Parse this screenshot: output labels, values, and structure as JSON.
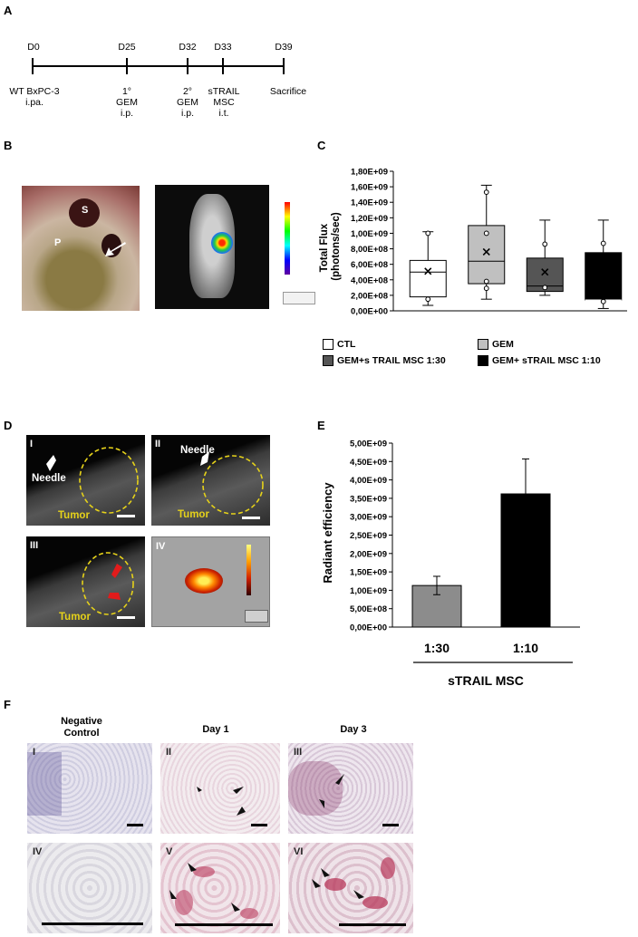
{
  "panels": {
    "A": "A",
    "B": "B",
    "C": "C",
    "D": "D",
    "E": "E",
    "F": "F"
  },
  "timeline": {
    "days": [
      "D0",
      "D25",
      "D32",
      "D33",
      "D39"
    ],
    "labels": [
      "WT BxPC-3\ni.pa.",
      "1°\nGEM\ni.p.",
      "2°\nGEM\ni.p.",
      "sTRAIL\nMSC\ni.t.",
      "Sacrifice"
    ]
  },
  "photoB": {
    "s_label": "S",
    "p_label": "P"
  },
  "ultrasound": {
    "roman": [
      "I",
      "II",
      "III",
      "IV"
    ],
    "needle": "Needle",
    "tumor": "Tumor"
  },
  "histology": {
    "titles": [
      "Negative\nControl",
      "Day 1",
      "Day 3"
    ],
    "roman": [
      "I",
      "II",
      "III",
      "IV",
      "V",
      "VI"
    ]
  },
  "chart_data": [
    {
      "type": "box",
      "ylabel": "Total Flux\n(photons/sec)",
      "ylim": [
        0,
        1800000000
      ],
      "yticks": [
        "0,00E+00",
        "2,00E+08",
        "4,00E+08",
        "6,00E+08",
        "8,00E+08",
        "1,00E+09",
        "1,20E+09",
        "1,40E+09",
        "1,60E+09",
        "1,80E+09"
      ],
      "colors": [
        "#ffffff",
        "#c0c0c0",
        "#555555",
        "#000000"
      ],
      "legend": [
        "CTL",
        "GEM",
        "GEM+s TRAIL MSC 1:30",
        "GEM+ sTRAIL MSC 1:10"
      ],
      "series": [
        {
          "min": 70000000,
          "q1": 180000000,
          "median": 500000000,
          "q3": 650000000,
          "max": 1020000000,
          "mean": 510000000,
          "points": [
            1000000000,
            150000000
          ]
        },
        {
          "min": 150000000,
          "q1": 350000000,
          "median": 640000000,
          "q3": 1100000000,
          "max": 1620000000,
          "mean": 760000000,
          "points": [
            1530000000,
            1000000000,
            380000000,
            290000000
          ]
        },
        {
          "min": 200000000,
          "q1": 250000000,
          "median": 320000000,
          "q3": 680000000,
          "max": 1170000000,
          "mean": 500000000,
          "points": [
            860000000,
            300000000
          ]
        },
        {
          "min": 30000000,
          "q1": 140000000,
          "median": 140000000,
          "q3": 750000000,
          "max": 1170000000,
          "mean": null,
          "points": [
            870000000,
            120000000
          ]
        }
      ]
    },
    {
      "type": "bar",
      "ylabel": "Radiant efficiency",
      "ylim": [
        0,
        5000000000
      ],
      "yticks": [
        "0,00E+00",
        "5,00E+08",
        "1,00E+09",
        "1,50E+09",
        "2,00E+09",
        "2,50E+09",
        "3,00E+09",
        "3,50E+09",
        "4,00E+09",
        "4,50E+09",
        "5,00E+09"
      ],
      "categories": [
        "1:30",
        "1:10"
      ],
      "values": [
        1130000000,
        3620000000
      ],
      "errors": [
        250000000,
        950000000
      ],
      "colors": [
        "#8c8c8c",
        "#000000"
      ],
      "xlabel": "sTRAIL MSC"
    }
  ]
}
